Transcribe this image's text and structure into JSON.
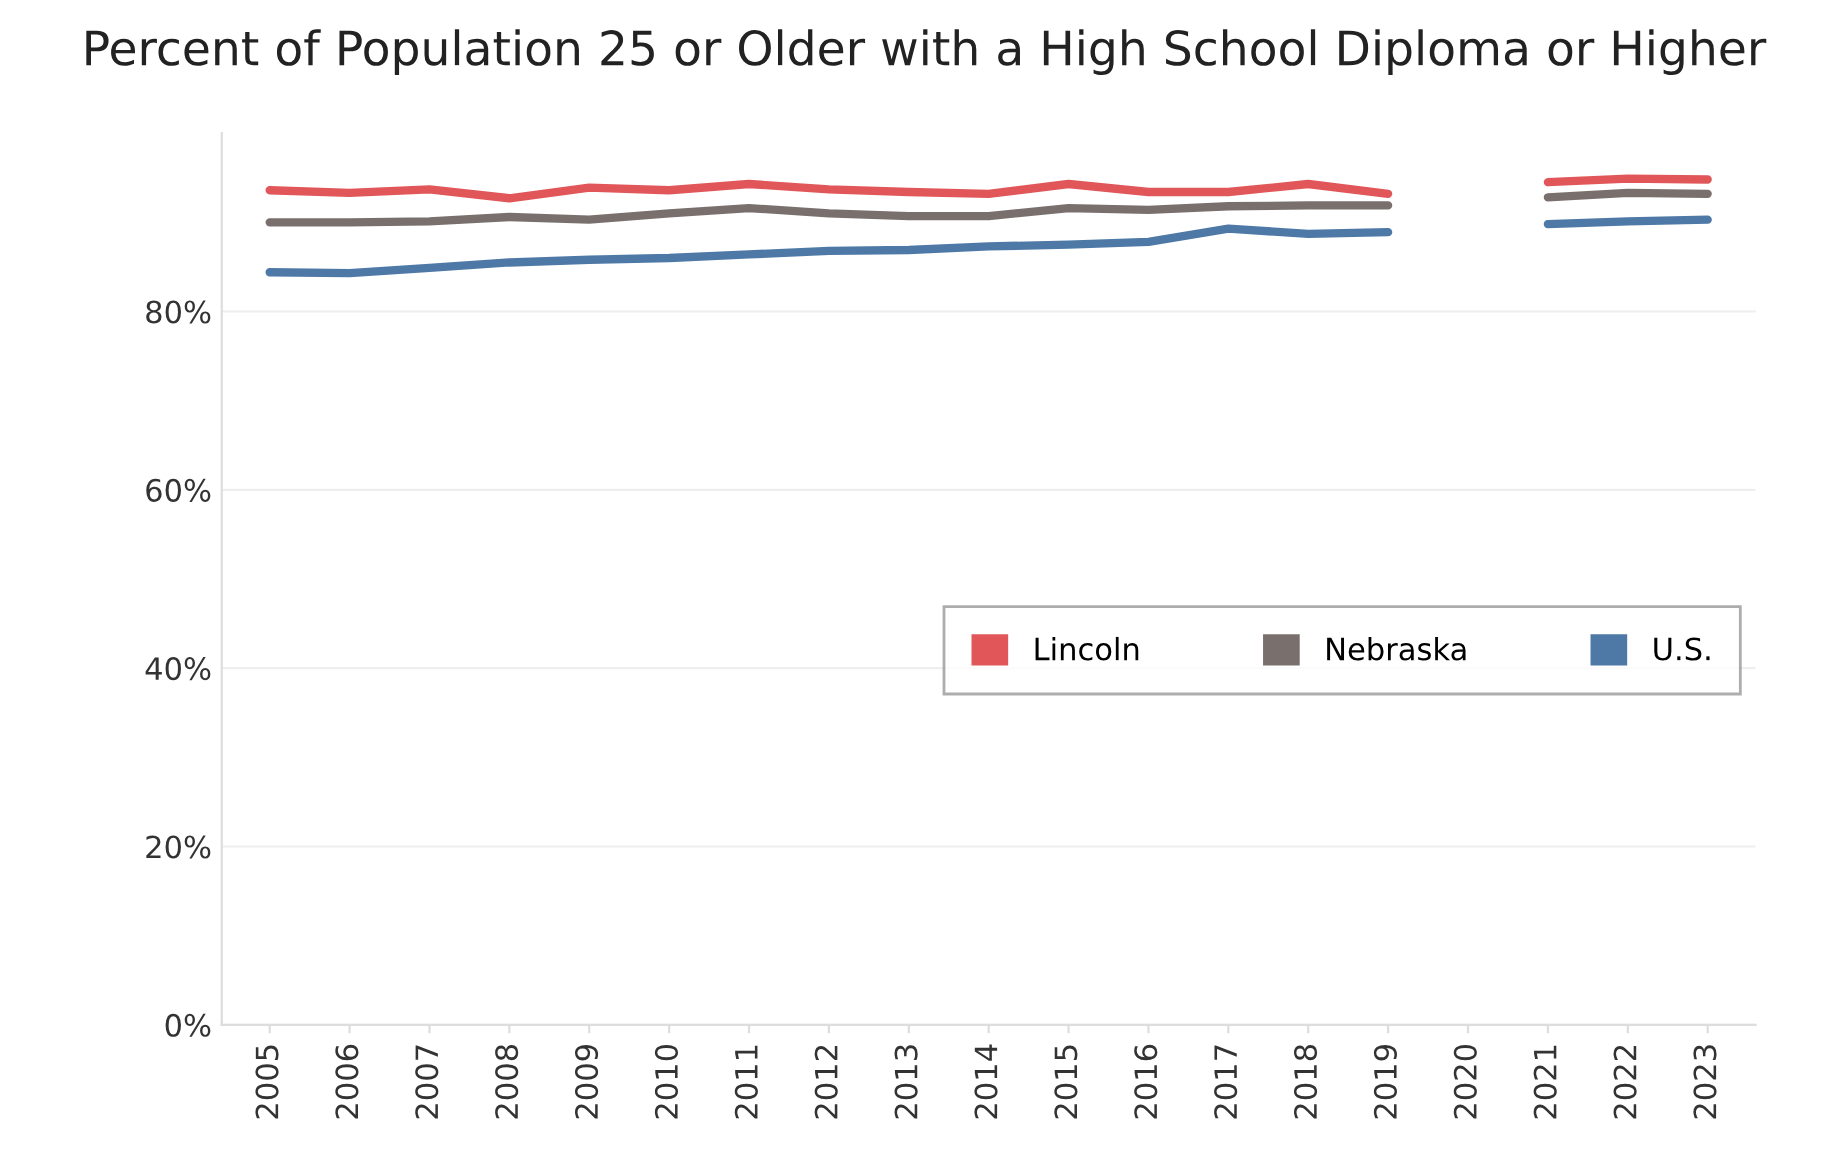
{
  "chart_data": {
    "type": "line",
    "title": "Percent of Population 25 or Older with a High School Diploma or Higher",
    "categories": [
      "2005",
      "2006",
      "2007",
      "2008",
      "2009",
      "2010",
      "2011",
      "2012",
      "2013",
      "2014",
      "2015",
      "2016",
      "2017",
      "2018",
      "2019",
      "2020",
      "2021",
      "2022",
      "2023"
    ],
    "series": [
      {
        "name": "Lincoln",
        "color": "#e15759",
        "values": [
          93.6,
          93.3,
          93.7,
          92.7,
          93.9,
          93.6,
          94.3,
          93.7,
          93.4,
          93.2,
          94.3,
          93.4,
          93.4,
          94.3,
          93.2,
          null,
          94.5,
          94.9,
          94.8
        ]
      },
      {
        "name": "Nebraska",
        "color": "#79706e",
        "values": [
          90.0,
          90.0,
          90.1,
          90.6,
          90.3,
          91.0,
          91.6,
          91.0,
          90.7,
          90.7,
          91.6,
          91.4,
          91.8,
          91.9,
          91.9,
          null,
          92.8,
          93.3,
          93.2
        ]
      },
      {
        "name": "U.S.",
        "color": "#4e79a7",
        "values": [
          84.4,
          84.3,
          84.9,
          85.5,
          85.8,
          86.0,
          86.4,
          86.8,
          86.9,
          87.3,
          87.5,
          87.8,
          89.3,
          88.7,
          88.9,
          null,
          89.8,
          90.1,
          90.3
        ]
      }
    ],
    "ylim": [
      0,
      100
    ],
    "yticks": [
      {
        "value": 0,
        "label": "0%"
      },
      {
        "value": 20,
        "label": "20%"
      },
      {
        "value": 40,
        "label": "40%"
      },
      {
        "value": 60,
        "label": "60%"
      },
      {
        "value": 80,
        "label": "80%"
      }
    ],
    "grid": "y",
    "legend": "right",
    "marker": "none",
    "line_style": "solid"
  }
}
